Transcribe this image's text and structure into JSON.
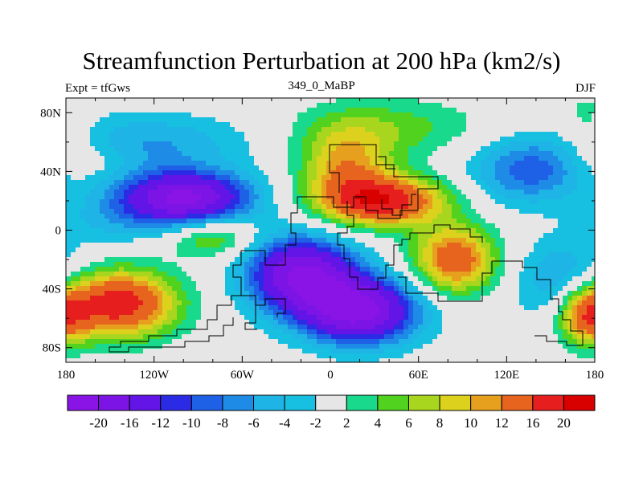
{
  "chart_data": {
    "type": "heatmap",
    "title": "Streamfunction Perturbation at 200 hPa (km2/s)",
    "left_string": "Expt = tfGws",
    "center_string": "349_0_MaBP",
    "right_string": "DJF",
    "x_ticks": [
      "180",
      "120W",
      "60W",
      "0",
      "60E",
      "120E",
      "180"
    ],
    "y_ticks": [
      "80N",
      "40N",
      "0",
      "40S",
      "80S"
    ],
    "x_range": [
      -180,
      180
    ],
    "y_range": [
      -90,
      90
    ],
    "levels": [
      -20,
      -16,
      -12,
      -10,
      -8,
      -6,
      -4,
      -2,
      2,
      4,
      6,
      8,
      10,
      12,
      16,
      20
    ],
    "level_labels": [
      "-20",
      "-16",
      "-12",
      "-10",
      "-8",
      "-6",
      "-4",
      "-2",
      "2",
      "4",
      "6",
      "8",
      "10",
      "12",
      "16",
      "20"
    ],
    "colors": [
      "#8a14e6",
      "#7d14e6",
      "#6314e6",
      "#2b2be6",
      "#1e60e6",
      "#1e8ce6",
      "#1eb4e6",
      "#17c0e0",
      "#e6e6e6",
      "#19d98c",
      "#50d21e",
      "#a8d61e",
      "#dcd21e",
      "#e6a01e",
      "#e6641e",
      "#e61e1e",
      "#d90000"
    ],
    "centers": [
      {
        "lon": -100,
        "lat": 22,
        "value": -21,
        "sx": 32,
        "sy": 13
      },
      {
        "lon": -20,
        "lat": -30,
        "value": -20,
        "sx": 26,
        "sy": 18
      },
      {
        "lon": 20,
        "lat": -55,
        "value": -21,
        "sx": 28,
        "sy": 16
      },
      {
        "lon": -125,
        "lat": 60,
        "value": -6,
        "sx": 50,
        "sy": 14
      },
      {
        "lon": 135,
        "lat": 40,
        "value": -9,
        "sx": 28,
        "sy": 16
      },
      {
        "lon": 160,
        "lat": -35,
        "value": -7,
        "sx": 24,
        "sy": 20
      },
      {
        "lon": -150,
        "lat": 5,
        "value": -3,
        "sx": 28,
        "sy": 12
      },
      {
        "lon": 35,
        "lat": 20,
        "value": 19,
        "sx": 30,
        "sy": 12
      },
      {
        "lon": 10,
        "lat": 45,
        "value": 10,
        "sx": 22,
        "sy": 18
      },
      {
        "lon": 40,
        "lat": 70,
        "value": 5,
        "sx": 45,
        "sy": 14
      },
      {
        "lon": -145,
        "lat": -50,
        "value": 19,
        "sx": 28,
        "sy": 16
      },
      {
        "lon": -80,
        "lat": -5,
        "value": 7,
        "sx": 20,
        "sy": 10
      },
      {
        "lon": 85,
        "lat": -20,
        "value": 15,
        "sx": 20,
        "sy": 16
      },
      {
        "lon": 175,
        "lat": -58,
        "value": 14,
        "sx": 14,
        "sy": 14
      },
      {
        "lon": 175,
        "lat": 70,
        "value": 4,
        "sx": 14,
        "sy": 18
      },
      {
        "lon": -165,
        "lat": 50,
        "value": 3,
        "sx": 18,
        "sy": 10
      }
    ]
  },
  "colors": {
    "border": "#000000",
    "missing": "#e6e6e6",
    "coast": "#000000"
  }
}
